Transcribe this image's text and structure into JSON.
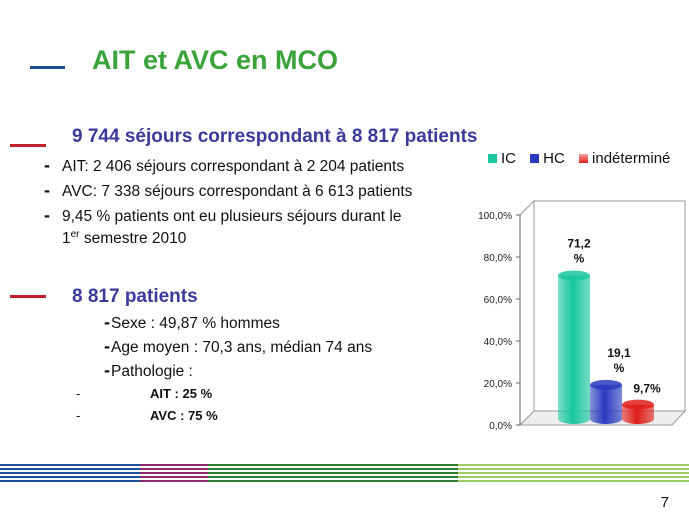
{
  "title": "AIT et AVC en MCO",
  "section1": {
    "heading": "9 744 séjours correspondant à 8 817 patients",
    "bullets": [
      {
        "text": "AIT: 2 406 séjours correspondant à 2 204 patients"
      },
      {
        "text": "AVC: 7 338  séjours correspondant à 6 613 patients"
      },
      {
        "text": "9,45 % patients ont eu plusieurs séjours durant le",
        "line2_pre": "1",
        "line2_sup": "er",
        "line2_post": " semestre 2010"
      }
    ]
  },
  "section2": {
    "heading": "8 817 patients",
    "items": [
      "Sexe : 49,87 % hommes",
      "Age moyen : 70,3 ans, médian 74 ans",
      "Pathologie :"
    ],
    "sub_items": [
      {
        "dash": "-",
        "label": "AIT : 25 %"
      },
      {
        "dash": "-",
        "label": "AVC  : 75 %"
      }
    ]
  },
  "chart_data": {
    "type": "bar",
    "style": "3d-cylinder",
    "categories": [
      "IC",
      "HC",
      "indéterminé"
    ],
    "values": [
      71.2,
      19.1,
      9.7
    ],
    "data_labels": [
      "71,2 %",
      "19,1 %",
      "9,7%"
    ],
    "colors": [
      "#19c7a0",
      "#2a3bbf",
      "#e0201c"
    ],
    "legend": [
      "IC",
      "HC",
      "indéterminé"
    ],
    "legend_position": "top",
    "y_ticks": [
      "0,0%",
      "20,0%",
      "40,0%",
      "60,0%",
      "80,0%",
      "100,0%"
    ],
    "ylim": [
      0,
      100
    ],
    "grid": false
  },
  "page_number": "7"
}
